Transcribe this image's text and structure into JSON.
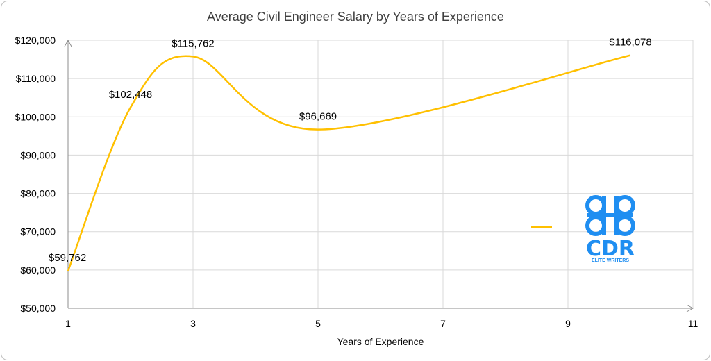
{
  "chart_data": {
    "type": "line",
    "title": "Average Civil Engineer Salary by Years of Experience",
    "xlabel": "Years of Experience",
    "ylabel": "",
    "xlim": [
      1,
      11
    ],
    "ylim": [
      50000,
      120000
    ],
    "x_ticks": [
      1,
      3,
      5,
      7,
      9,
      11
    ],
    "y_ticks": [
      50000,
      60000,
      70000,
      80000,
      90000,
      100000,
      110000,
      120000
    ],
    "y_tick_labels": [
      "$50,000",
      "$60,000",
      "$70,000",
      "$80,000",
      "$90,000",
      "$100,000",
      "$110,000",
      "$120,000"
    ],
    "series": [
      {
        "name": "",
        "color": "#ffc000",
        "x": [
          1,
          2,
          3,
          5,
          10
        ],
        "values": [
          59762,
          102448,
          115762,
          96669,
          116078
        ],
        "data_labels": [
          "$59,762",
          "$102,448",
          "$115,762",
          "$96,669",
          "$116,078"
        ]
      }
    ],
    "legend_position": "right",
    "grid": true
  },
  "logo": {
    "text": "CDR",
    "subtitle": "ELITE WRITERS",
    "color": "#1f8ef1"
  }
}
